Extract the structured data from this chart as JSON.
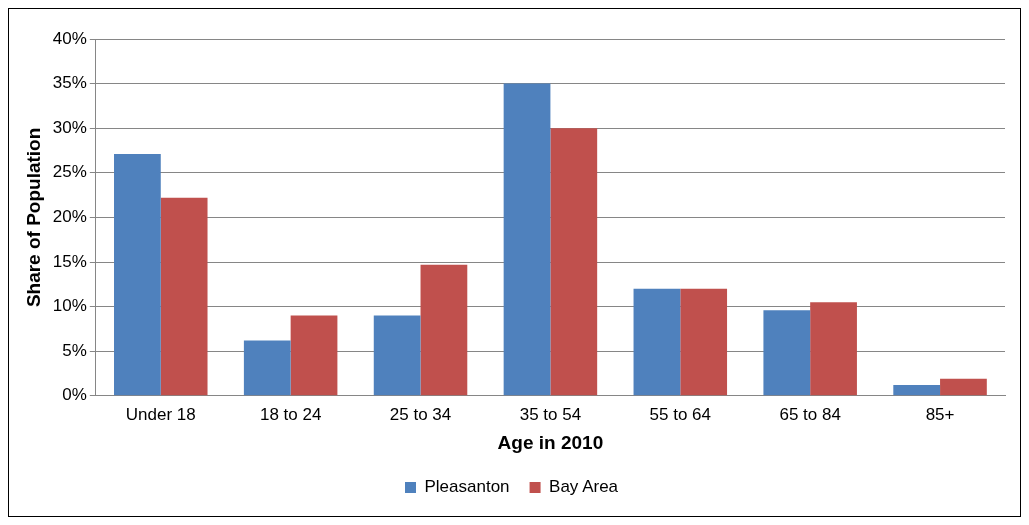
{
  "chart_data": {
    "type": "bar",
    "xlabel": "Age in 2010",
    "ylabel": "Share of Population",
    "categories": [
      "Under 18",
      "18 to 24",
      "25 to 34",
      "35 to 54",
      "55 to 64",
      "65 to 84",
      "85+"
    ],
    "series": [
      {
        "name": "Pleasanton",
        "color": "#4f81bd",
        "values": [
          27.1,
          6.2,
          9.0,
          35.0,
          12.0,
          9.6,
          1.2
        ]
      },
      {
        "name": "Bay Area",
        "color": "#c0504d",
        "values": [
          22.2,
          9.0,
          14.7,
          30.0,
          12.0,
          10.5,
          1.9
        ]
      }
    ],
    "ylim": [
      0,
      40
    ],
    "yticks": [
      {
        "value": 0,
        "label": "0%"
      },
      {
        "value": 5,
        "label": "5%"
      },
      {
        "value": 10,
        "label": "10%"
      },
      {
        "value": 15,
        "label": "15%"
      },
      {
        "value": 20,
        "label": "20%"
      },
      {
        "value": 25,
        "label": "25%"
      },
      {
        "value": 30,
        "label": "30%"
      },
      {
        "value": 35,
        "label": "35%"
      },
      {
        "value": 40,
        "label": "40%"
      }
    ],
    "grid": "y",
    "legend": "bottom"
  }
}
